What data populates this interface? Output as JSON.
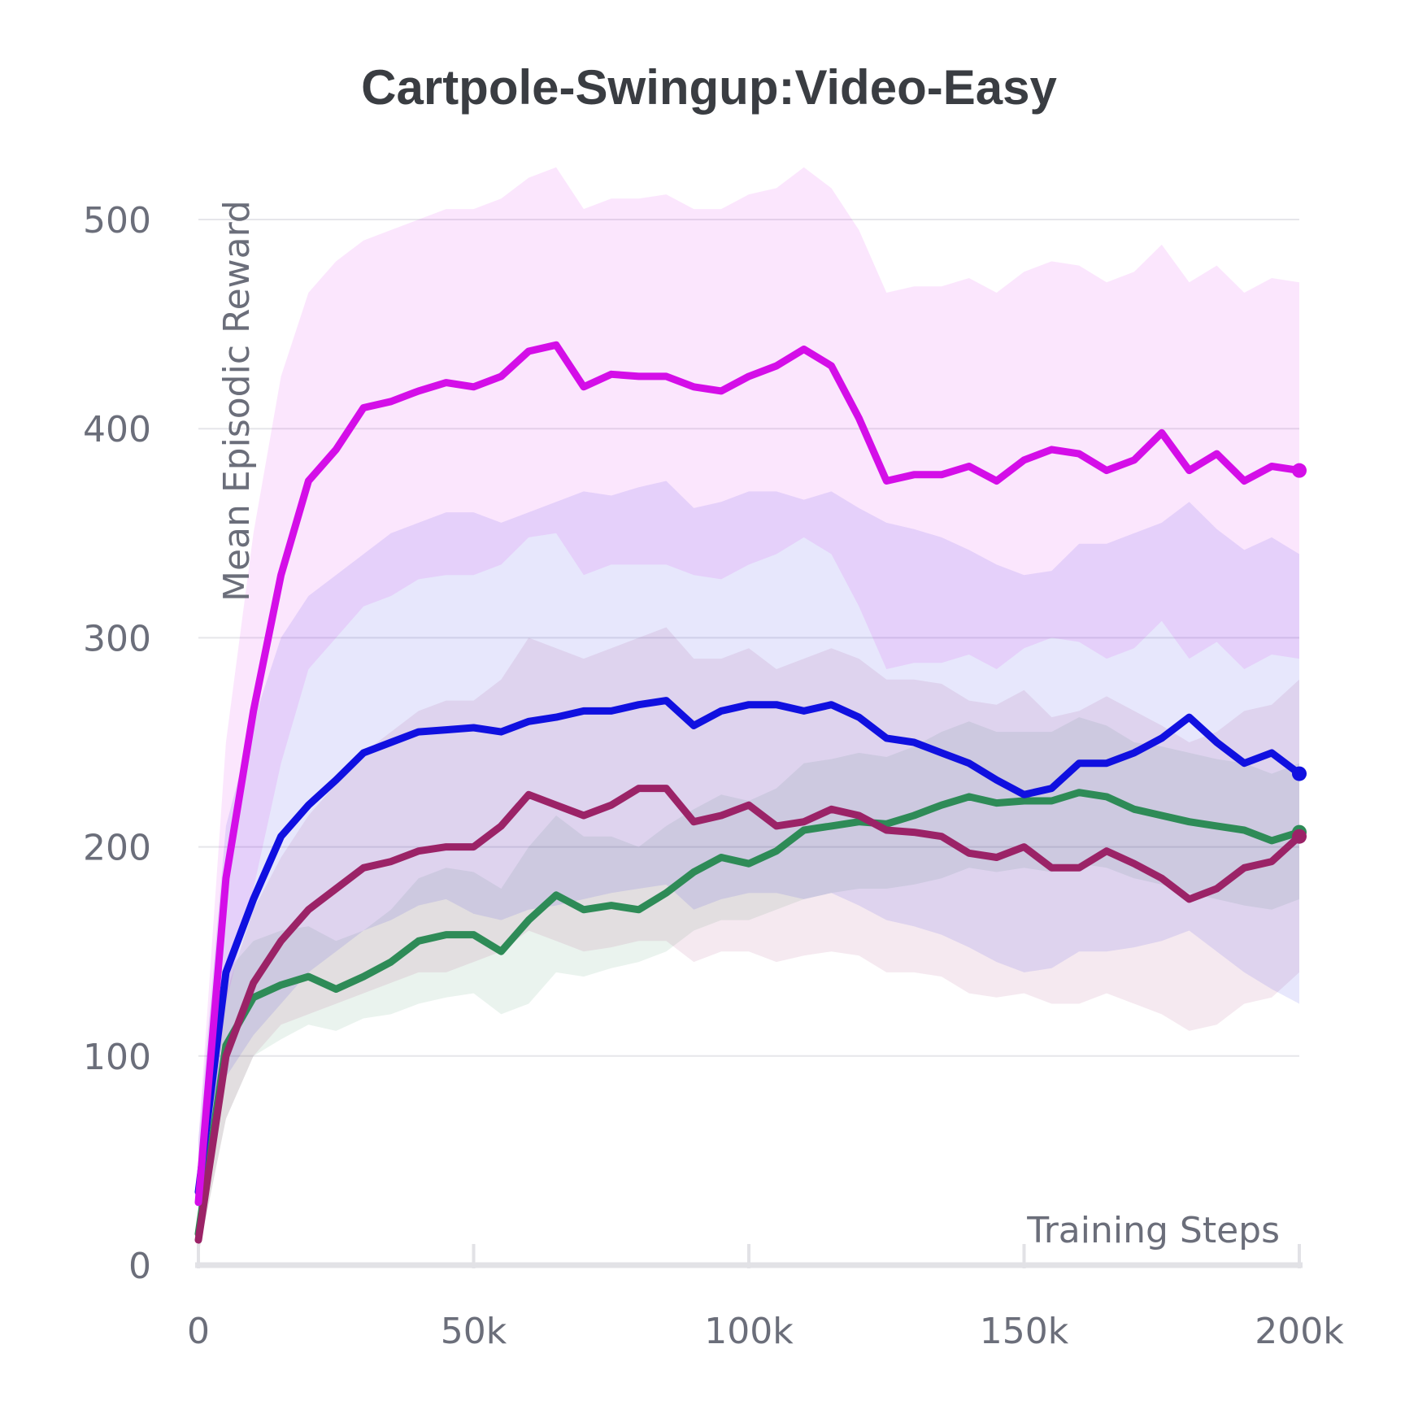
{
  "chart_data": {
    "type": "line",
    "title": "Cartpole-Swingup:Video-Easy",
    "xlabel": "Training Steps",
    "ylabel": "Mean Episodic Reward",
    "xlim": [
      0,
      200000
    ],
    "ylim": [
      0,
      530
    ],
    "xticks": [
      0,
      50000,
      100000,
      150000,
      200000
    ],
    "xtick_labels": [
      "0",
      "50k",
      "100k",
      "150k",
      "200k"
    ],
    "yticks": [
      0,
      100,
      200,
      300,
      400,
      500
    ],
    "ytick_labels": [
      "0",
      "100",
      "200",
      "300",
      "400",
      "500"
    ],
    "grid": true,
    "legend": "none",
    "series": [
      {
        "color": "#2e8b57",
        "x": [
          0,
          5000,
          10000,
          15000,
          20000,
          25000,
          30000,
          35000,
          40000,
          45000,
          50000,
          55000,
          60000,
          65000,
          70000,
          75000,
          80000,
          85000,
          90000,
          95000,
          100000,
          105000,
          110000,
          115000,
          120000,
          125000,
          130000,
          135000,
          140000,
          145000,
          150000,
          155000,
          160000,
          165000,
          170000,
          175000,
          180000,
          185000,
          190000,
          195000,
          200000
        ],
        "y": [
          15,
          105,
          128,
          134,
          138,
          132,
          138,
          145,
          155,
          158,
          158,
          150,
          165,
          177,
          170,
          172,
          170,
          178,
          188,
          195,
          192,
          198,
          208,
          210,
          212,
          211,
          215,
          220,
          224,
          221,
          222,
          222,
          226,
          224,
          218,
          215,
          212,
          210,
          208,
          203,
          207
        ],
        "band_lo": [
          5,
          70,
          100,
          108,
          115,
          112,
          118,
          120,
          125,
          128,
          130,
          120,
          125,
          140,
          138,
          142,
          145,
          150,
          160,
          165,
          165,
          170,
          175,
          178,
          180,
          180,
          182,
          185,
          190,
          188,
          190,
          188,
          192,
          190,
          185,
          182,
          178,
          175,
          172,
          170,
          175
        ],
        "band_hi": [
          30,
          140,
          155,
          160,
          162,
          155,
          160,
          170,
          185,
          190,
          188,
          180,
          200,
          215,
          205,
          205,
          200,
          210,
          218,
          225,
          222,
          228,
          240,
          242,
          245,
          243,
          248,
          255,
          260,
          255,
          255,
          255,
          262,
          258,
          250,
          248,
          245,
          242,
          240,
          235,
          240
        ]
      },
      {
        "color": "#9b2367",
        "x": [
          0,
          5000,
          10000,
          15000,
          20000,
          25000,
          30000,
          35000,
          40000,
          45000,
          50000,
          55000,
          60000,
          65000,
          70000,
          75000,
          80000,
          85000,
          90000,
          95000,
          100000,
          105000,
          110000,
          115000,
          120000,
          125000,
          130000,
          135000,
          140000,
          145000,
          150000,
          155000,
          160000,
          165000,
          170000,
          175000,
          180000,
          185000,
          190000,
          195000,
          200000
        ],
        "y": [
          12,
          100,
          135,
          155,
          170,
          180,
          190,
          193,
          198,
          200,
          200,
          210,
          225,
          220,
          215,
          220,
          228,
          228,
          212,
          215,
          220,
          210,
          212,
          218,
          215,
          208,
          207,
          205,
          197,
          195,
          200,
          190,
          190,
          198,
          192,
          185,
          175,
          180,
          190,
          193,
          205
        ],
        "band_lo": [
          5,
          70,
          100,
          115,
          120,
          125,
          130,
          135,
          140,
          140,
          145,
          150,
          160,
          155,
          150,
          152,
          155,
          155,
          145,
          150,
          150,
          145,
          148,
          150,
          148,
          140,
          140,
          138,
          130,
          128,
          130,
          125,
          125,
          130,
          125,
          120,
          112,
          115,
          125,
          128,
          140
        ],
        "band_hi": [
          25,
          130,
          170,
          195,
          215,
          230,
          245,
          255,
          265,
          270,
          270,
          280,
          300,
          295,
          290,
          295,
          300,
          305,
          290,
          290,
          295,
          285,
          290,
          295,
          290,
          280,
          280,
          278,
          270,
          268,
          275,
          262,
          265,
          272,
          265,
          258,
          250,
          255,
          265,
          268,
          280
        ]
      },
      {
        "color": "#1010e0",
        "x": [
          0,
          5000,
          10000,
          15000,
          20000,
          25000,
          30000,
          35000,
          40000,
          45000,
          50000,
          55000,
          60000,
          65000,
          70000,
          75000,
          80000,
          85000,
          90000,
          95000,
          100000,
          105000,
          110000,
          115000,
          120000,
          125000,
          130000,
          135000,
          140000,
          145000,
          150000,
          155000,
          160000,
          165000,
          170000,
          175000,
          180000,
          185000,
          190000,
          195000,
          200000
        ],
        "y": [
          35,
          140,
          175,
          205,
          220,
          232,
          245,
          250,
          255,
          256,
          257,
          255,
          260,
          262,
          265,
          265,
          268,
          270,
          258,
          265,
          268,
          268,
          265,
          268,
          262,
          252,
          250,
          245,
          240,
          232,
          225,
          228,
          240,
          240,
          245,
          252,
          262,
          250,
          240,
          245,
          235
        ],
        "band_lo": [
          15,
          90,
          110,
          125,
          140,
          150,
          160,
          165,
          172,
          175,
          168,
          165,
          170,
          172,
          175,
          178,
          180,
          182,
          170,
          175,
          178,
          178,
          175,
          178,
          172,
          165,
          162,
          158,
          152,
          145,
          140,
          142,
          150,
          150,
          152,
          155,
          160,
          150,
          140,
          132,
          125
        ],
        "band_hi": [
          60,
          210,
          260,
          300,
          320,
          330,
          340,
          350,
          355,
          360,
          360,
          355,
          360,
          365,
          370,
          368,
          372,
          375,
          362,
          365,
          370,
          370,
          366,
          370,
          362,
          355,
          352,
          348,
          342,
          335,
          330,
          332,
          345,
          345,
          350,
          355,
          365,
          352,
          342,
          348,
          340
        ]
      },
      {
        "color": "#d40ee8",
        "x": [
          0,
          5000,
          10000,
          15000,
          20000,
          25000,
          30000,
          35000,
          40000,
          45000,
          50000,
          55000,
          60000,
          65000,
          70000,
          75000,
          80000,
          85000,
          90000,
          95000,
          100000,
          105000,
          110000,
          115000,
          120000,
          125000,
          130000,
          135000,
          140000,
          145000,
          150000,
          155000,
          160000,
          165000,
          170000,
          175000,
          180000,
          185000,
          190000,
          195000,
          200000
        ],
        "y": [
          30,
          185,
          265,
          330,
          375,
          390,
          410,
          413,
          418,
          422,
          420,
          425,
          437,
          440,
          420,
          426,
          425,
          425,
          420,
          418,
          425,
          430,
          438,
          430,
          405,
          375,
          378,
          378,
          382,
          375,
          385,
          390,
          388,
          380,
          385,
          398,
          380,
          388,
          375,
          382,
          380
        ],
        "band_lo": [
          10,
          125,
          180,
          240,
          285,
          300,
          315,
          320,
          328,
          330,
          330,
          335,
          348,
          350,
          330,
          335,
          335,
          335,
          330,
          328,
          335,
          340,
          348,
          340,
          315,
          285,
          288,
          288,
          292,
          285,
          295,
          300,
          298,
          290,
          295,
          308,
          290,
          298,
          285,
          292,
          290
        ],
        "band_hi": [
          60,
          250,
          350,
          425,
          465,
          480,
          490,
          495,
          500,
          505,
          505,
          510,
          520,
          525,
          505,
          510,
          510,
          512,
          505,
          505,
          512,
          515,
          525,
          515,
          495,
          465,
          468,
          468,
          472,
          465,
          475,
          480,
          478,
          470,
          475,
          488,
          470,
          478,
          465,
          472,
          470
        ]
      }
    ]
  }
}
